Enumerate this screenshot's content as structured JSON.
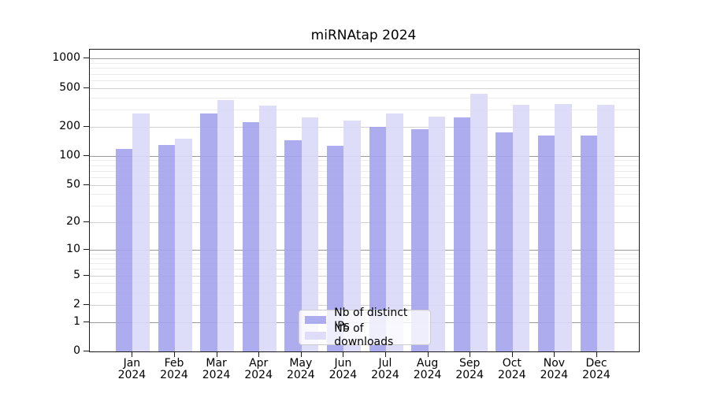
{
  "title": "miRNAtap 2024",
  "chart_data": {
    "type": "bar",
    "title": "miRNAtap 2024",
    "categories": [
      "Jan 2024",
      "Feb 2024",
      "Mar 2024",
      "Apr 2024",
      "May 2024",
      "Jun 2024",
      "Jul 2024",
      "Aug 2024",
      "Sep 2024",
      "Oct 2024",
      "Nov 2024",
      "Dec 2024"
    ],
    "series": [
      {
        "name": "Nb of distinct IPs",
        "color": "#a3a3ed",
        "values": [
          118,
          130,
          272,
          222,
          146,
          128,
          198,
          188,
          248,
          174,
          162,
          162
        ]
      },
      {
        "name": "Nb of downloads",
        "color": "#d9d9f8",
        "values": [
          273,
          151,
          375,
          330,
          247,
          231,
          273,
          255,
          433,
          336,
          342,
          335
        ]
      }
    ],
    "xlabel": "",
    "ylabel": "",
    "yscale": "log1p",
    "yticks": [
      0,
      1,
      2,
      5,
      10,
      20,
      50,
      100,
      200,
      500,
      1000
    ],
    "yminorticks": [
      3,
      4,
      6,
      7,
      8,
      9,
      30,
      40,
      60,
      70,
      80,
      90,
      300,
      400,
      600,
      700,
      800,
      900
    ],
    "ylim": [
      0,
      1235
    ],
    "grid": "horizontal",
    "legend_position": "lower center",
    "colors": {
      "grid_major": "#9b9b9b",
      "grid_mid": "#d2d2d2",
      "grid_minor": "#ececec",
      "axis": "#1a1a1a",
      "legend_border": "#cccccc"
    }
  }
}
